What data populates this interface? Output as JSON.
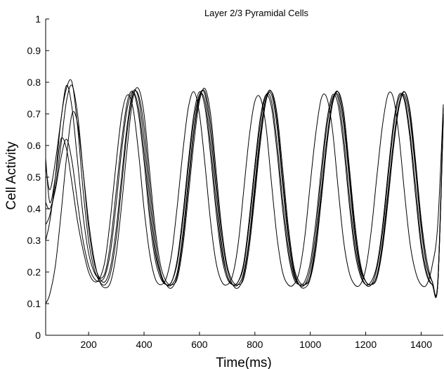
{
  "chart_data": {
    "type": "line",
    "title": "Layer 2/3 Pyramidal Cells",
    "xlabel": "Time(ms)",
    "ylabel": "Cell Activity",
    "xlim": [
      45,
      1480
    ],
    "ylim": [
      0,
      1
    ],
    "xticks": [
      200,
      400,
      600,
      800,
      1000,
      1200,
      1400
    ],
    "yticks": [
      0,
      0.1,
      0.2,
      0.3,
      0.4,
      0.5,
      0.6,
      0.7,
      0.8,
      0.9,
      1
    ],
    "grid": false,
    "legend": "none",
    "line_color": "#000000",
    "series": [
      {
        "x": [
          45,
          60,
          80,
          100,
          120,
          140,
          160,
          180,
          200,
          220,
          240,
          260,
          280,
          300,
          320,
          340,
          360,
          380,
          400,
          420,
          440,
          460,
          480,
          500,
          520,
          540,
          560,
          580,
          600,
          620,
          640,
          660,
          680,
          700,
          720,
          740,
          760,
          780,
          800,
          820,
          840,
          860,
          880,
          900,
          920,
          940,
          960,
          980,
          1000,
          1020,
          1040,
          1060,
          1080,
          1100,
          1120,
          1140,
          1160,
          1180,
          1200,
          1220,
          1240,
          1260,
          1280,
          1300,
          1320,
          1340,
          1360,
          1380,
          1400,
          1420,
          1440,
          1460,
          1480
        ],
        "values": [
          0.54,
          0.46,
          0.55,
          0.68,
          0.79,
          0.72,
          0.55,
          0.38,
          0.26,
          0.2,
          0.18,
          0.2,
          0.3,
          0.46,
          0.62,
          0.74,
          0.77,
          0.7,
          0.55,
          0.37,
          0.24,
          0.18,
          0.16,
          0.17,
          0.24,
          0.38,
          0.55,
          0.7,
          0.77,
          0.72,
          0.57,
          0.39,
          0.25,
          0.18,
          0.16,
          0.17,
          0.23,
          0.37,
          0.54,
          0.69,
          0.76,
          0.72,
          0.58,
          0.4,
          0.26,
          0.18,
          0.16,
          0.17,
          0.23,
          0.36,
          0.53,
          0.68,
          0.76,
          0.73,
          0.6,
          0.42,
          0.27,
          0.19,
          0.16,
          0.17,
          0.22,
          0.34,
          0.51,
          0.67,
          0.76,
          0.74,
          0.62,
          0.44,
          0.28,
          0.19,
          0.16,
          0.17,
          0.72
        ]
      },
      {
        "x": [
          45,
          60,
          80,
          100,
          120,
          140,
          160,
          180,
          200,
          220,
          240,
          260,
          280,
          300,
          320,
          340,
          360,
          380,
          400,
          420,
          440,
          460,
          480,
          500,
          520,
          540,
          560,
          580,
          600,
          620,
          640,
          660,
          680,
          700,
          720,
          740,
          760,
          780,
          800,
          820,
          840,
          860,
          880,
          900,
          920,
          940,
          960,
          980,
          1000,
          1020,
          1040,
          1060,
          1080,
          1100,
          1120,
          1140,
          1160,
          1180,
          1200,
          1220,
          1240,
          1260,
          1280,
          1300,
          1320,
          1340,
          1360,
          1380,
          1400,
          1420,
          1440,
          1460,
          1480
        ],
        "values": [
          0.35,
          0.38,
          0.47,
          0.6,
          0.74,
          0.79,
          0.7,
          0.52,
          0.34,
          0.23,
          0.18,
          0.17,
          0.22,
          0.34,
          0.51,
          0.67,
          0.77,
          0.75,
          0.62,
          0.44,
          0.28,
          0.19,
          0.16,
          0.16,
          0.2,
          0.32,
          0.49,
          0.65,
          0.76,
          0.76,
          0.64,
          0.46,
          0.29,
          0.19,
          0.16,
          0.16,
          0.2,
          0.31,
          0.48,
          0.64,
          0.75,
          0.76,
          0.66,
          0.48,
          0.31,
          0.2,
          0.16,
          0.16,
          0.19,
          0.3,
          0.46,
          0.62,
          0.74,
          0.76,
          0.67,
          0.5,
          0.32,
          0.21,
          0.17,
          0.16,
          0.19,
          0.29,
          0.45,
          0.61,
          0.73,
          0.76,
          0.68,
          0.52,
          0.34,
          0.22,
          0.17,
          0.16,
          0.7
        ]
      },
      {
        "x": [
          45,
          60,
          80,
          100,
          120,
          140,
          160,
          180,
          200,
          220,
          240,
          260,
          280,
          300,
          320,
          340,
          360,
          380,
          400,
          420,
          440,
          460,
          480,
          500,
          520,
          540,
          560,
          580,
          600,
          620,
          640,
          660,
          680,
          700,
          720,
          740,
          760,
          780,
          800,
          820,
          840,
          860,
          880,
          900,
          920,
          940,
          960,
          980,
          1000,
          1020,
          1040,
          1060,
          1080,
          1100,
          1120,
          1140,
          1160,
          1180,
          1200,
          1220,
          1240,
          1260,
          1280,
          1300,
          1320,
          1340,
          1360,
          1380,
          1400,
          1420,
          1440,
          1460,
          1480
        ],
        "values": [
          0.42,
          0.4,
          0.46,
          0.56,
          0.62,
          0.55,
          0.42,
          0.3,
          0.22,
          0.18,
          0.17,
          0.19,
          0.27,
          0.42,
          0.59,
          0.72,
          0.77,
          0.72,
          0.58,
          0.4,
          0.26,
          0.19,
          0.16,
          0.17,
          0.23,
          0.36,
          0.53,
          0.68,
          0.76,
          0.74,
          0.6,
          0.42,
          0.27,
          0.19,
          0.16,
          0.17,
          0.22,
          0.35,
          0.52,
          0.67,
          0.76,
          0.74,
          0.61,
          0.43,
          0.28,
          0.19,
          0.16,
          0.16,
          0.21,
          0.33,
          0.5,
          0.66,
          0.75,
          0.75,
          0.63,
          0.45,
          0.29,
          0.2,
          0.16,
          0.16,
          0.21,
          0.32,
          0.49,
          0.65,
          0.75,
          0.75,
          0.64,
          0.47,
          0.3,
          0.2,
          0.16,
          0.16,
          0.7
        ]
      },
      {
        "x": [
          45,
          60,
          80,
          100,
          120,
          140,
          160,
          180,
          200,
          220,
          240,
          260,
          280,
          300,
          320,
          340,
          360,
          380,
          400,
          420,
          440,
          460,
          480,
          500,
          520,
          540,
          560,
          580,
          600,
          620,
          640,
          660,
          680,
          700,
          720,
          740,
          760,
          780,
          800,
          820,
          840,
          860,
          880,
          900,
          920,
          940,
          960,
          980,
          1000,
          1020,
          1040,
          1060,
          1080,
          1100,
          1120,
          1140,
          1160,
          1180,
          1200,
          1220,
          1240,
          1260,
          1280,
          1300,
          1320,
          1340,
          1360,
          1380,
          1400,
          1420,
          1440,
          1460,
          1480
        ],
        "values": [
          0.1,
          0.13,
          0.22,
          0.38,
          0.56,
          0.7,
          0.67,
          0.52,
          0.36,
          0.24,
          0.17,
          0.15,
          0.17,
          0.26,
          0.42,
          0.6,
          0.75,
          0.78,
          0.7,
          0.52,
          0.34,
          0.22,
          0.17,
          0.16,
          0.18,
          0.28,
          0.44,
          0.61,
          0.74,
          0.78,
          0.7,
          0.52,
          0.34,
          0.22,
          0.17,
          0.16,
          0.18,
          0.28,
          0.44,
          0.61,
          0.74,
          0.77,
          0.7,
          0.53,
          0.35,
          0.22,
          0.17,
          0.16,
          0.18,
          0.27,
          0.43,
          0.6,
          0.73,
          0.77,
          0.71,
          0.54,
          0.36,
          0.23,
          0.17,
          0.16,
          0.18,
          0.27,
          0.42,
          0.59,
          0.72,
          0.77,
          0.71,
          0.55,
          0.37,
          0.24,
          0.17,
          0.16,
          0.69
        ]
      },
      {
        "x": [
          45,
          60,
          80,
          100,
          120,
          140,
          160,
          180,
          200,
          220,
          240,
          260,
          280,
          300,
          320,
          340,
          360,
          380,
          400,
          420,
          440,
          460,
          480,
          500,
          520,
          540,
          560,
          580,
          600,
          620,
          640,
          660,
          680,
          700,
          720,
          740,
          760,
          780,
          800,
          820,
          840,
          860,
          880,
          900,
          920,
          940,
          960,
          980,
          1000,
          1020,
          1040,
          1060,
          1080,
          1100,
          1120,
          1140,
          1160,
          1180,
          1200,
          1220,
          1240,
          1260,
          1280,
          1300,
          1320,
          1340,
          1360,
          1380,
          1400,
          1420,
          1440,
          1460,
          1480
        ],
        "values": [
          0.56,
          0.42,
          0.5,
          0.62,
          0.59,
          0.48,
          0.36,
          0.27,
          0.2,
          0.17,
          0.18,
          0.24,
          0.38,
          0.55,
          0.7,
          0.76,
          0.72,
          0.58,
          0.4,
          0.26,
          0.18,
          0.16,
          0.18,
          0.26,
          0.41,
          0.58,
          0.72,
          0.77,
          0.7,
          0.54,
          0.36,
          0.23,
          0.17,
          0.16,
          0.19,
          0.29,
          0.46,
          0.63,
          0.74,
          0.75,
          0.66,
          0.48,
          0.31,
          0.2,
          0.16,
          0.16,
          0.2,
          0.31,
          0.48,
          0.64,
          0.75,
          0.75,
          0.65,
          0.47,
          0.3,
          0.2,
          0.16,
          0.16,
          0.21,
          0.33,
          0.5,
          0.66,
          0.76,
          0.75,
          0.63,
          0.45,
          0.29,
          0.2,
          0.16,
          0.16,
          0.22,
          0.35,
          0.73
        ]
      },
      {
        "x": [
          45,
          60,
          80,
          100,
          120,
          140,
          160,
          180,
          200,
          220,
          240,
          260,
          280,
          300,
          320,
          340,
          360,
          380,
          400,
          420,
          440,
          460,
          480,
          500,
          520,
          540,
          560,
          580,
          600,
          620,
          640,
          660,
          680,
          700,
          720,
          740,
          760,
          780,
          800,
          820,
          840,
          860,
          880,
          900,
          920,
          940,
          960,
          980,
          1000,
          1020,
          1040,
          1060,
          1080,
          1100,
          1120,
          1140,
          1160,
          1180,
          1200,
          1220,
          1240,
          1260,
          1280,
          1300,
          1320,
          1340,
          1360,
          1380,
          1400,
          1420,
          1440,
          1460,
          1480
        ],
        "values": [
          0.3,
          0.36,
          0.5,
          0.68,
          0.78,
          0.8,
          0.66,
          0.46,
          0.3,
          0.21,
          0.17,
          0.16,
          0.2,
          0.31,
          0.48,
          0.65,
          0.76,
          0.76,
          0.66,
          0.48,
          0.31,
          0.2,
          0.16,
          0.15,
          0.19,
          0.3,
          0.47,
          0.64,
          0.75,
          0.77,
          0.67,
          0.49,
          0.32,
          0.21,
          0.16,
          0.15,
          0.19,
          0.3,
          0.46,
          0.63,
          0.75,
          0.77,
          0.68,
          0.5,
          0.33,
          0.21,
          0.16,
          0.15,
          0.18,
          0.29,
          0.45,
          0.62,
          0.74,
          0.77,
          0.69,
          0.52,
          0.34,
          0.22,
          0.17,
          0.16,
          0.18,
          0.28,
          0.44,
          0.61,
          0.73,
          0.77,
          0.7,
          0.53,
          0.35,
          0.22,
          0.17,
          0.16,
          0.68
        ]
      }
    ]
  }
}
